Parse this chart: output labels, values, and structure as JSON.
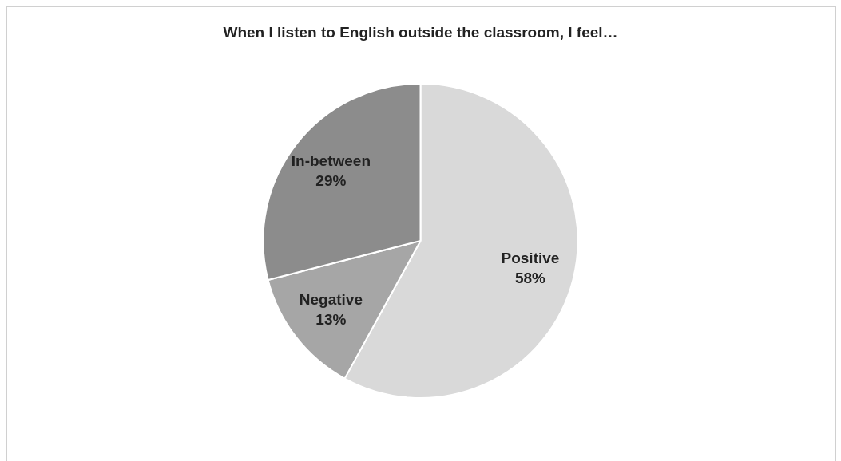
{
  "chart_data": {
    "type": "pie",
    "title": "When I listen to English outside the classroom, I feel…",
    "categories": [
      "Positive",
      "Negative",
      "In-between"
    ],
    "values": [
      58,
      13,
      29
    ],
    "value_labels": [
      "58%",
      "13%",
      "29%"
    ],
    "colors": [
      "#d9d9d9",
      "#a6a6a6",
      "#8c8c8c"
    ]
  }
}
